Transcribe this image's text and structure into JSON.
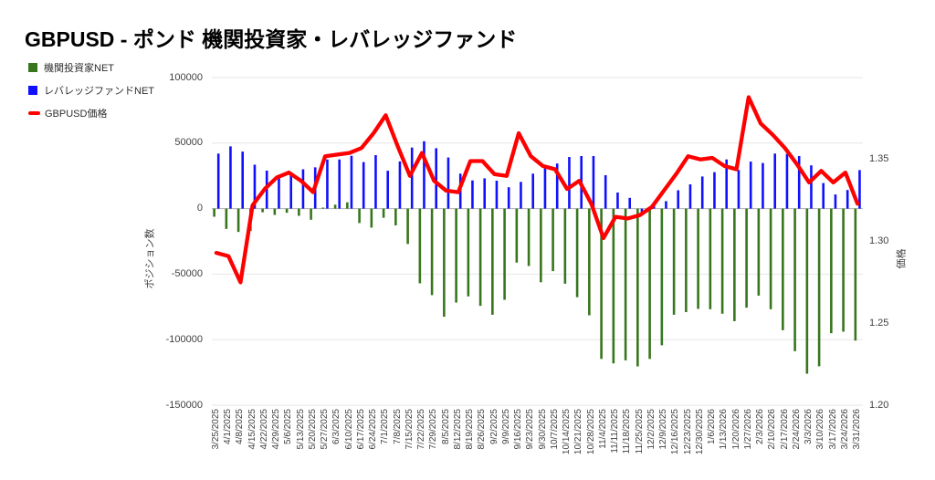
{
  "title": "GBPUSD - ポンド 機関投資家・レバレッジファンド",
  "legend": {
    "items": [
      {
        "label": "機関投資家NET",
        "color": "#38761d",
        "shape": "square"
      },
      {
        "label": "レバレッジファンドNET",
        "color": "#1010ff",
        "shape": "square"
      },
      {
        "label": "GBPUSD価格",
        "color": "#ff0000",
        "shape": "dash"
      }
    ]
  },
  "chart_data": {
    "type": "bar",
    "subtype": "grouped-bars-with-line-overlay",
    "grid": true,
    "legend_position": "top-left",
    "categories": [
      "3/25/2025",
      "4/1/2025",
      "4/8/2025",
      "4/15/2025",
      "4/22/2025",
      "4/29/2025",
      "5/6/2025",
      "5/13/2025",
      "5/20/2025",
      "5/27/2025",
      "6/3/2025",
      "6/10/2025",
      "6/17/2025",
      "6/24/2025",
      "7/1/2025",
      "7/8/2025",
      "7/15/2025",
      "7/22/2025",
      "7/29/2025",
      "8/5/2025",
      "8/12/2025",
      "8/19/2025",
      "8/26/2025",
      "9/2/2025",
      "9/9/2025",
      "9/16/2025",
      "9/23/2025",
      "9/30/2025",
      "10/7/2025",
      "10/14/2025",
      "10/21/2025",
      "10/28/2025",
      "11/4/2025",
      "11/11/2025",
      "11/18/2025",
      "11/25/2025",
      "12/2/2025",
      "12/9/2025",
      "12/16/2025",
      "12/23/2025",
      "12/30/2025",
      "1/6/2026",
      "1/13/2026",
      "1/20/2026",
      "1/27/2026",
      "2/3/2026",
      "2/10/2026",
      "2/17/2026",
      "2/24/2026",
      "3/3/2026",
      "3/10/2026",
      "3/17/2026",
      "3/24/2026",
      "3/31/2026"
    ],
    "series": [
      {
        "name": "機関投資家NET",
        "type": "bar",
        "axis": "left",
        "color": "#38761d",
        "values": [
          -6200,
          -15500,
          -17800,
          -17000,
          -2800,
          -4800,
          -3200,
          -5500,
          -8500,
          800,
          3000,
          4800,
          -11000,
          -14500,
          -7000,
          -12800,
          -27000,
          -57000,
          -66000,
          -82500,
          -71700,
          -67000,
          -74200,
          -81000,
          -69600,
          -41200,
          -43800,
          -56200,
          -47700,
          -57300,
          -67600,
          -81400,
          -114700,
          -118100,
          -115800,
          -120400,
          -114700,
          -104300,
          -81000,
          -79000,
          -76500,
          -76800,
          -80200,
          -85900,
          -75600,
          -66400,
          -76800,
          -92800,
          -108800,
          -126000,
          -120300,
          -95100,
          -93900,
          -100700
        ]
      },
      {
        "name": "レバレッジファンドNET",
        "type": "bar",
        "axis": "left",
        "color": "#1010ff",
        "values": [
          42000,
          47500,
          43500,
          33500,
          29000,
          25200,
          26000,
          30000,
          31500,
          37500,
          37500,
          40300,
          35500,
          40800,
          28900,
          36000,
          46600,
          51400,
          46100,
          39000,
          26700,
          21500,
          23100,
          21300,
          16300,
          20400,
          26700,
          31400,
          34400,
          39400,
          40100,
          40100,
          25500,
          12300,
          8200,
          -2500,
          2700,
          5700,
          14000,
          18500,
          24500,
          27800,
          37500,
          29500,
          35900,
          34800,
          42000,
          41700,
          40100,
          33000,
          19500,
          10800,
          14200,
          29400
        ]
      },
      {
        "name": "GBPUSD価格",
        "type": "line",
        "axis": "right",
        "color": "#ff0000",
        "values": [
          1.293,
          1.291,
          1.275,
          1.322,
          1.332,
          1.339,
          1.342,
          1.337,
          1.33,
          1.352,
          1.353,
          1.354,
          1.357,
          1.366,
          1.377,
          1.358,
          1.34,
          1.354,
          1.337,
          1.331,
          1.33,
          1.349,
          1.349,
          1.341,
          1.34,
          1.366,
          1.352,
          1.346,
          1.344,
          1.332,
          1.337,
          1.323,
          1.302,
          1.315,
          1.314,
          1.316,
          1.321,
          1.331,
          1.341,
          1.352,
          1.35,
          1.351,
          1.346,
          1.344,
          1.388,
          1.372,
          1.365,
          1.357,
          1.347,
          1.336,
          1.343,
          1.336,
          1.342,
          1.323
        ]
      }
    ],
    "left_axis": {
      "label": "ポジション数",
      "tick_labels": [
        "100000",
        "50000",
        "0",
        "-50000",
        "-100000",
        "-150000"
      ],
      "tick_values": [
        100000,
        50000,
        0,
        -50000,
        -100000,
        -150000
      ],
      "range": [
        -150000,
        100000
      ]
    },
    "right_axis": {
      "label": "価格",
      "tick_labels": [
        "1.35",
        "1.30",
        "1.25",
        "1.20"
      ],
      "tick_values": [
        1.35,
        1.3,
        1.25,
        1.2
      ],
      "range": [
        1.2,
        1.4
      ]
    },
    "colors": {
      "grid": "#e6e6e6",
      "zero_line": "#b0b0b0",
      "tick_text": "#404040"
    }
  }
}
